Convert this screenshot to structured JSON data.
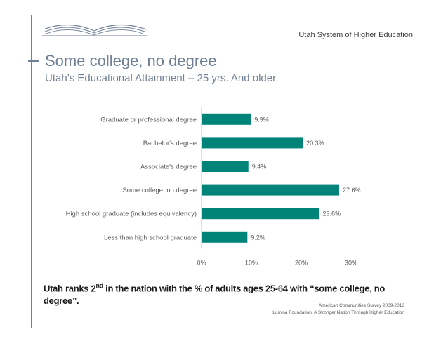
{
  "header": {
    "organization": "Utah System of Higher Education"
  },
  "slide": {
    "title": "Some college, no degree",
    "subtitle": "Utah’s Educational Attainment – 25 yrs. And older"
  },
  "chart_data": {
    "type": "bar",
    "orientation": "horizontal",
    "categories": [
      "Graduate or professional degree",
      "Bachelor's degree",
      "Associate's degree",
      "Some college, no degree",
      "High school graduate (includes equivalency)",
      "Less than high school graduate"
    ],
    "values": [
      9.9,
      20.3,
      9.4,
      27.6,
      23.6,
      9.2
    ],
    "data_labels": [
      "9.9%",
      "20.3%",
      "9.4%",
      "27.6%",
      "23.6%",
      "9.2%"
    ],
    "x_ticks": [
      "0%",
      "10%",
      "20%",
      "30%"
    ],
    "xlim": [
      0,
      30
    ],
    "bar_color": "#00847a",
    "grid": false
  },
  "footer": {
    "note_prefix": "Utah ranks 2",
    "note_sup": "nd",
    "note_suffix": " in the nation with the % of adults ages 25-64 with “some college, no degree”.",
    "source_line1": "American Communities Survey 2009-2013",
    "source_line2": "Lumina Foundation, A Stronger Nation Through Higher Education"
  },
  "colors": {
    "accent": "#6f7f95",
    "bar": "#00847a"
  }
}
